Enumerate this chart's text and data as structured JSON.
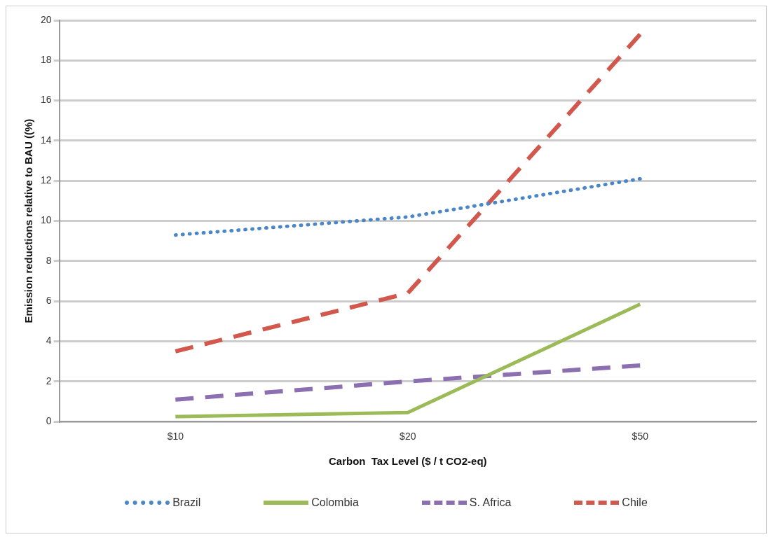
{
  "chart_data": {
    "type": "line",
    "xlabel": "Carbon  Tax Level ($ / t CO2-eq)",
    "ylabel": "Emission reductions relative to BAU ((%)",
    "categories": [
      "$10",
      "$20",
      "$50"
    ],
    "series": [
      {
        "name": "Brazil",
        "color": "#4a86c8",
        "values": [
          9.3,
          10.2,
          12.1
        ],
        "line_style": "dotted"
      },
      {
        "name": "Colombia",
        "color": "#9bbb59",
        "values": [
          0.25,
          0.45,
          5.85
        ],
        "line_style": "solid"
      },
      {
        "name": "S. Africa",
        "color": "#8c6fb0",
        "values": [
          1.1,
          2.0,
          2.8
        ],
        "line_style": "dashed"
      },
      {
        "name": "Chile",
        "color": "#d2574c",
        "values": [
          3.5,
          6.4,
          19.3
        ],
        "line_style": "dashed"
      }
    ],
    "ylim": [
      0,
      20
    ],
    "yticks": [
      0,
      2,
      4,
      6,
      8,
      10,
      12,
      14,
      16,
      18,
      20
    ],
    "grid": "y",
    "legend": "bottom",
    "marker": "none"
  }
}
